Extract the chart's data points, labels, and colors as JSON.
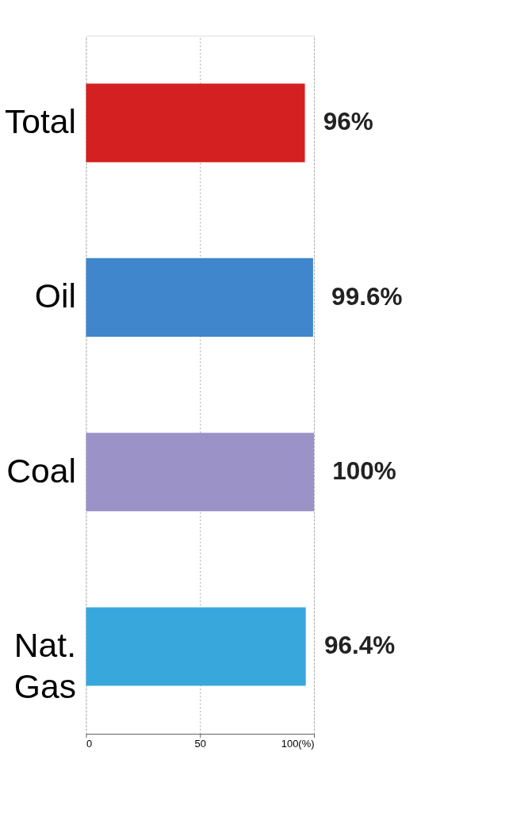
{
  "chart_data": {
    "type": "bar",
    "orientation": "horizontal",
    "categories": [
      "Total",
      "Oil",
      "Coal",
      "Nat. Gas"
    ],
    "values": [
      96,
      99.6,
      100,
      96.4
    ],
    "colors": [
      "#d42020",
      "#3f86cc",
      "#9b93c8",
      "#38a8dc"
    ],
    "value_labels": [
      "96%",
      "99.6%",
      "100%",
      "96.4%"
    ],
    "xlim": [
      0,
      100
    ],
    "xticks": [
      0,
      50,
      {
        "value": 100,
        "label": "100(%)"
      }
    ],
    "grid": "x",
    "line_style": "dotted"
  }
}
